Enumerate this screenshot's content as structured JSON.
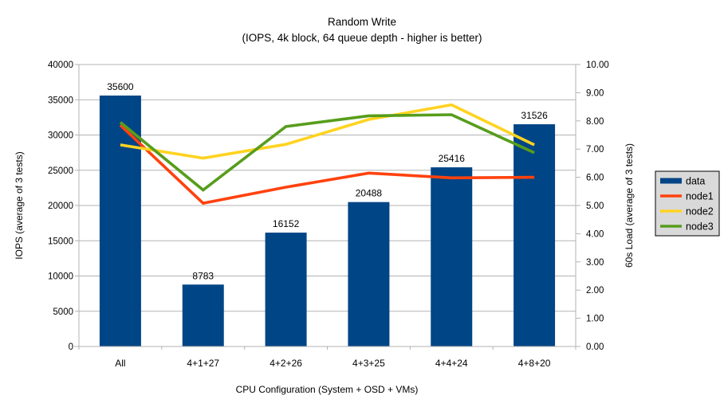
{
  "chart_data": {
    "type": "bar",
    "subtype": "combo-bar-line",
    "title": "Random Write",
    "subtitle": "(IOPS, 4k block, 64 queue depth - higher is better)",
    "xlabel": "CPU Configuration (System + OSD + VMs)",
    "categories": [
      "All",
      "4+1+27",
      "4+2+26",
      "4+3+25",
      "4+4+24",
      "4+8+20"
    ],
    "left_axis": {
      "label": "IOPS (average of 3 tests)",
      "min": 0,
      "max": 40000,
      "step": 5000,
      "tick_labels": [
        "0",
        "5000",
        "10000",
        "15000",
        "20000",
        "25000",
        "30000",
        "35000",
        "40000"
      ]
    },
    "right_axis": {
      "label": "60s Load (average of 3 tests)",
      "min": 0,
      "max": 10,
      "step": 1,
      "tick_labels": [
        "0.00",
        "1.00",
        "2.00",
        "3.00",
        "4.00",
        "5.00",
        "6.00",
        "7.00",
        "8.00",
        "9.00",
        "10.00"
      ]
    },
    "bar_series": {
      "name": "data",
      "axis": "left",
      "color": "#004586",
      "values": [
        35600,
        8783,
        16152,
        20488,
        25416,
        31526
      ],
      "value_labels": [
        "35600",
        "8783",
        "16152",
        "20488",
        "25416",
        "31526"
      ]
    },
    "line_series": [
      {
        "name": "node1",
        "axis": "right",
        "color": "#ff420e",
        "values": [
          7.85,
          5.08,
          5.65,
          6.15,
          5.98,
          6.0
        ]
      },
      {
        "name": "node2",
        "axis": "right",
        "color": "#ffd320",
        "values": [
          7.15,
          6.68,
          7.17,
          8.05,
          8.57,
          7.15
        ]
      },
      {
        "name": "node3",
        "axis": "right",
        "color": "#579d1c",
        "values": [
          7.95,
          5.55,
          7.8,
          8.18,
          8.22,
          6.87
        ]
      }
    ],
    "legend": {
      "position": "right",
      "background": "#d9d9d9",
      "border": "#000000",
      "items": [
        "data",
        "node1",
        "node2",
        "node3"
      ]
    },
    "grid": true,
    "colors": {
      "grid": "#b3b3b3",
      "axis": "#b3b3b3",
      "text": "#000000",
      "background": "#ffffff"
    }
  }
}
